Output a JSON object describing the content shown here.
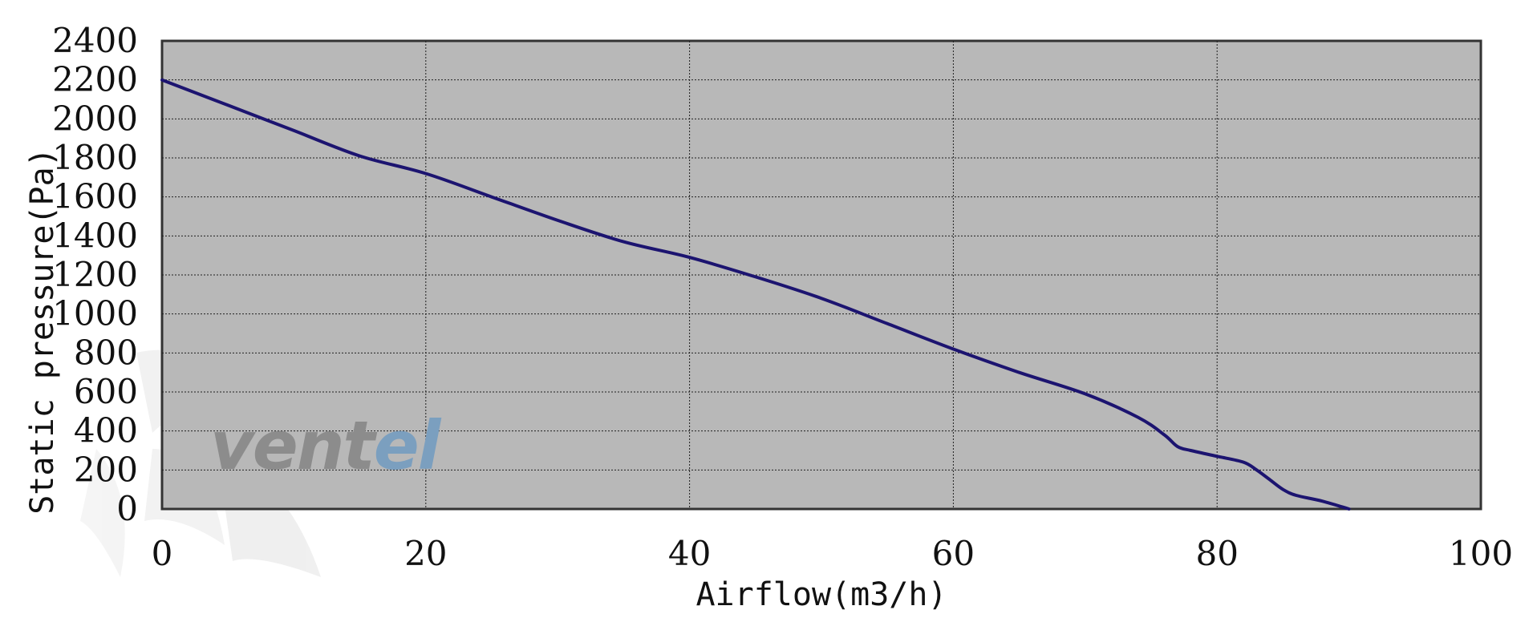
{
  "chart_data": {
    "type": "line",
    "title": "",
    "xlabel": "Airflow(m3/h)",
    "ylabel": "Static pressure(Pa)",
    "xlim": [
      0,
      100
    ],
    "ylim": [
      0,
      2400
    ],
    "x_ticks": [
      0,
      20,
      40,
      60,
      80,
      100
    ],
    "x_tick_labels": [
      "0",
      "20",
      "40",
      "60",
      "80",
      "100"
    ],
    "y_ticks": [
      0,
      200,
      400,
      600,
      800,
      1000,
      1200,
      1400,
      1600,
      1800,
      2000,
      2200,
      2400
    ],
    "y_tick_labels": [
      "0",
      "200",
      "400",
      "600",
      "800",
      "1000",
      "1200",
      "1400",
      "1600",
      "1800",
      "2000",
      "2200",
      "2400"
    ],
    "grid": true,
    "background_color": "#b8b8b8",
    "series": [
      {
        "color": "#1c1470",
        "x": [
          0,
          5,
          10,
          15,
          20,
          25,
          30,
          35,
          40,
          45,
          50,
          55,
          60,
          65,
          70,
          74,
          76,
          77,
          78,
          80,
          82,
          83,
          84,
          85,
          86,
          88,
          90
        ],
        "y": [
          2200,
          2070,
          1940,
          1810,
          1720,
          1600,
          1480,
          1370,
          1290,
          1190,
          1080,
          950,
          820,
          700,
          590,
          470,
          380,
          320,
          300,
          270,
          240,
          200,
          150,
          100,
          70,
          40,
          0
        ]
      }
    ]
  },
  "watermark": {
    "part1": "vent",
    "part2": "el",
    "color1": "#8c8c8c",
    "color2": "#7b9fbf"
  }
}
